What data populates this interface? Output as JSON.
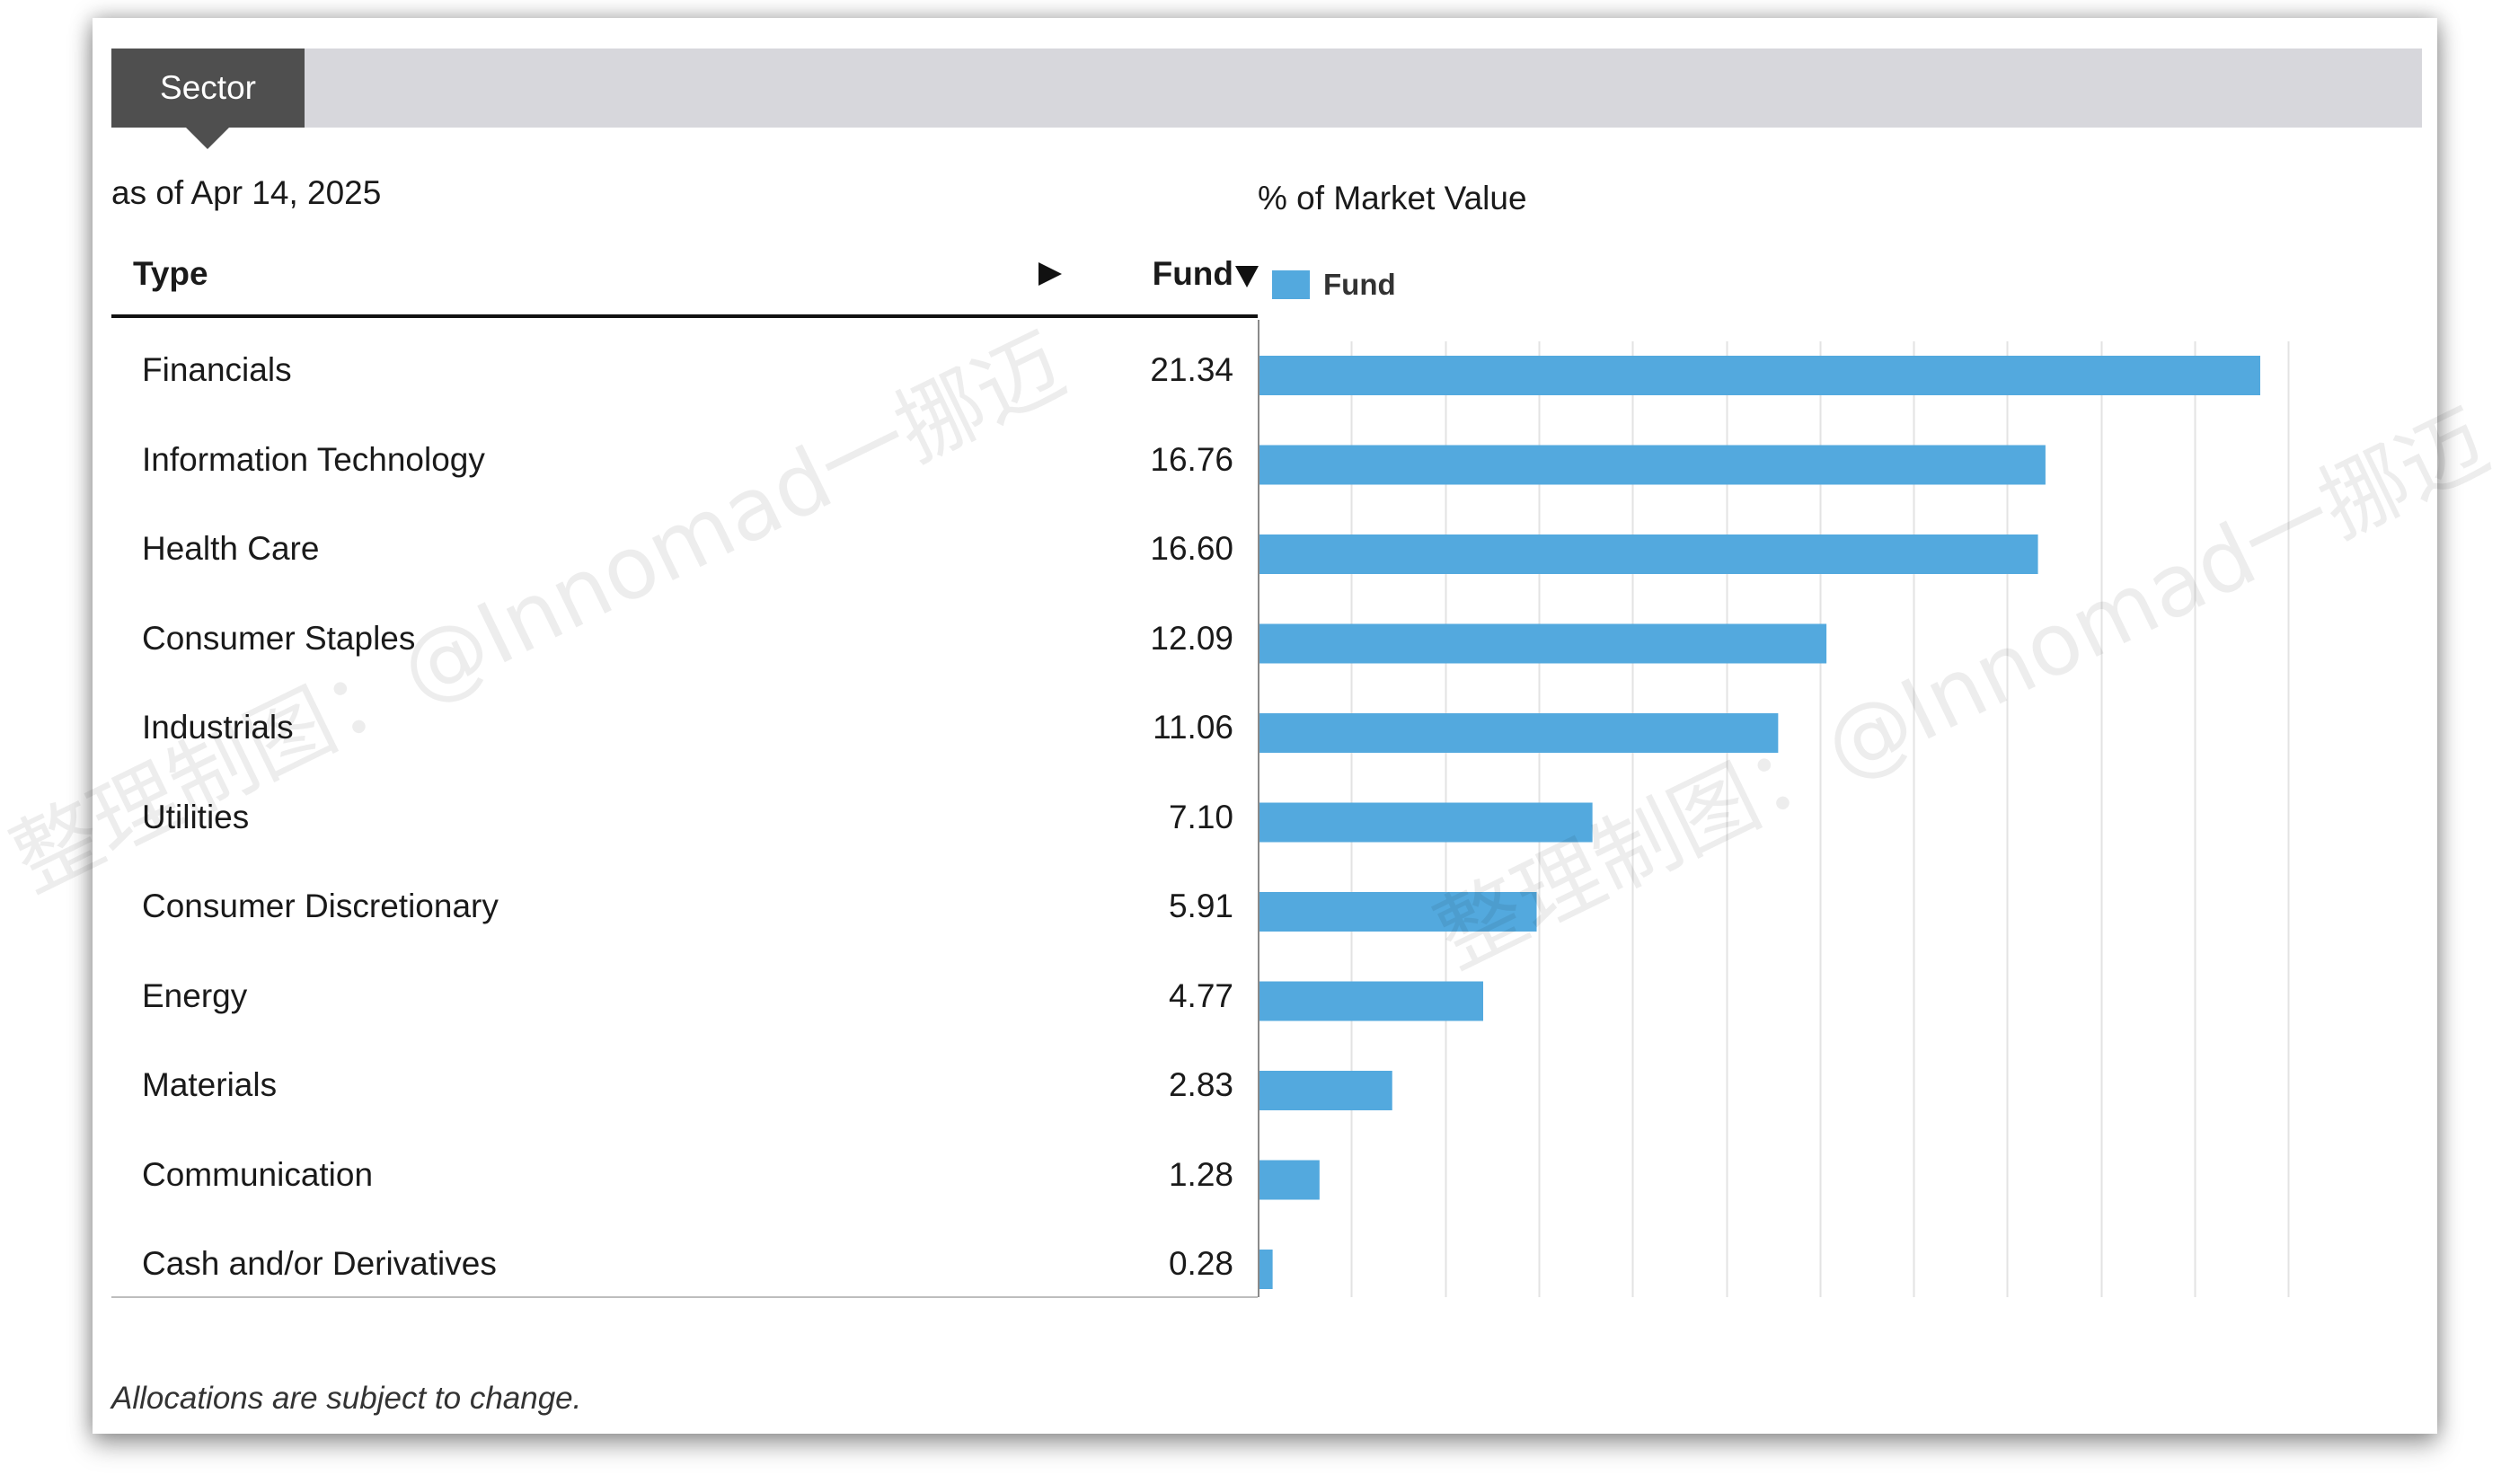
{
  "tab": {
    "label": "Sector"
  },
  "as_of": "as of Apr 14, 2025",
  "chart_title": "% of Market Value",
  "table": {
    "col_type": "Type",
    "col_fund": "Fund"
  },
  "legend": {
    "label": "Fund",
    "color": "#53a9de"
  },
  "footnote": "Allocations are subject to change.",
  "watermark": "整理制图：@Innomad一挪迈",
  "chart_data": {
    "type": "bar",
    "orientation": "horizontal",
    "title": "% of Market Value",
    "categories": [
      "Financials",
      "Information Technology",
      "Health Care",
      "Consumer Staples",
      "Industrials",
      "Utilities",
      "Consumer Discretionary",
      "Energy",
      "Materials",
      "Communication",
      "Cash and/or Derivatives"
    ],
    "value_labels": [
      "21.34",
      "16.76",
      "16.60",
      "12.09",
      "11.06",
      "7.10",
      "5.91",
      "4.77",
      "2.83",
      "1.28",
      "0.28"
    ],
    "series": [
      {
        "name": "Fund",
        "color": "#53a9de",
        "values": [
          21.34,
          16.76,
          16.6,
          12.09,
          11.06,
          7.1,
          5.91,
          4.77,
          2.83,
          1.28,
          0.28
        ]
      }
    ],
    "xlim": [
      0,
      24
    ],
    "gridlines": 12,
    "grid": true,
    "legend": "top-left"
  }
}
